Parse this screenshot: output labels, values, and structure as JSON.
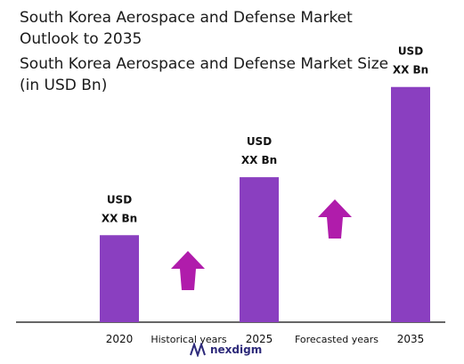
{
  "header": {
    "title": "South Korea Aerospace and Defense Market Outlook to 2035",
    "subtitle": "South Korea Aerospace and Defense Market Size (in USD Bn)"
  },
  "brand": {
    "name": "nexdigm",
    "icon": "nexdigm-logo-icon",
    "color": "#2d2a7a"
  },
  "colors": {
    "bar": "#8a3fc0",
    "arrow": "#b01cab",
    "axis": "#333333"
  },
  "chart_data": {
    "type": "bar",
    "title": "South Korea Aerospace and Defense Market Size (in USD Bn)",
    "categories": [
      "2020",
      "2025",
      "2035"
    ],
    "values": [
      0.27,
      0.45,
      0.73
    ],
    "value_labels": [
      [
        "USD",
        "XX Bn"
      ],
      [
        "USD",
        "XX Bn"
      ],
      [
        "USD",
        "XX Bn"
      ]
    ],
    "ylim": [
      0,
      1
    ],
    "grid": false,
    "annotations": [
      {
        "text": "Historical years",
        "between": [
          "2020",
          "2025"
        ],
        "icon": "up-arrow-icon"
      },
      {
        "text": "Forecasted years",
        "between": [
          "2025",
          "2035"
        ],
        "icon": "up-arrow-icon"
      }
    ]
  }
}
